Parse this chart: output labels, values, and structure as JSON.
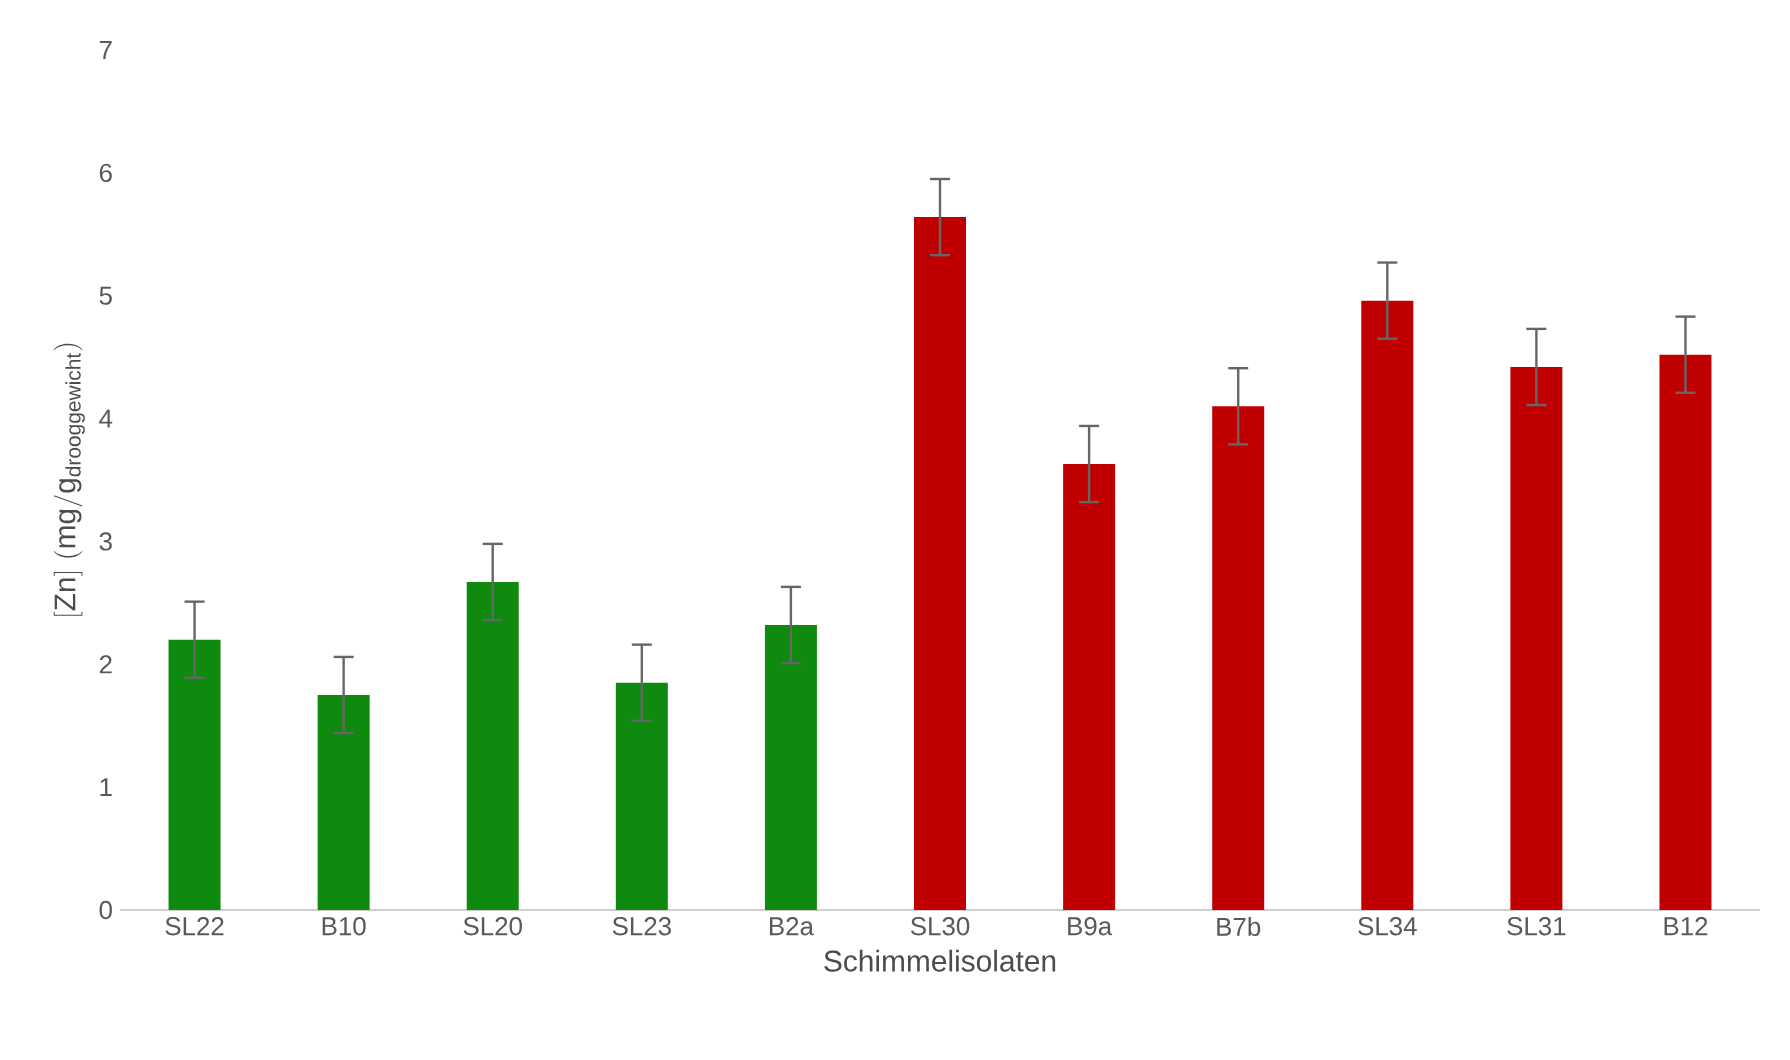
{
  "chart_data": {
    "type": "bar",
    "xlabel": "Schimmelisolaten",
    "ylabel": "[\\mathrm{Zn}]\\ (\\mathrm{mg}/\\mathrm{g}_{\\mathrm{drooggewicht}})",
    "categories": [
      "SL22",
      "B10",
      "SL20",
      "SL23",
      "B2a",
      "SL30",
      "B9a",
      "B7b",
      "SL34",
      "SL31",
      "B12"
    ],
    "values": [
      2.2,
      1.75,
      2.67,
      1.85,
      2.32,
      5.64,
      3.63,
      4.1,
      4.96,
      4.42,
      4.52
    ],
    "colors": [
      "#0e8a0e",
      "#0e8a0e",
      "#0e8a0e",
      "#0e8a0e",
      "#0e8a0e",
      "#c00000",
      "#c00000",
      "#c00000",
      "#c00000",
      "#c00000",
      "#c00000"
    ],
    "errors": [
      0.31,
      0.31,
      0.31,
      0.31,
      0.31,
      0.31,
      0.31,
      0.31,
      0.31,
      0.31,
      0.31
    ],
    "ylim": [
      0,
      7
    ],
    "yticks": [
      0,
      1,
      2,
      3,
      4,
      5,
      6,
      7
    ],
    "grid": false
  }
}
